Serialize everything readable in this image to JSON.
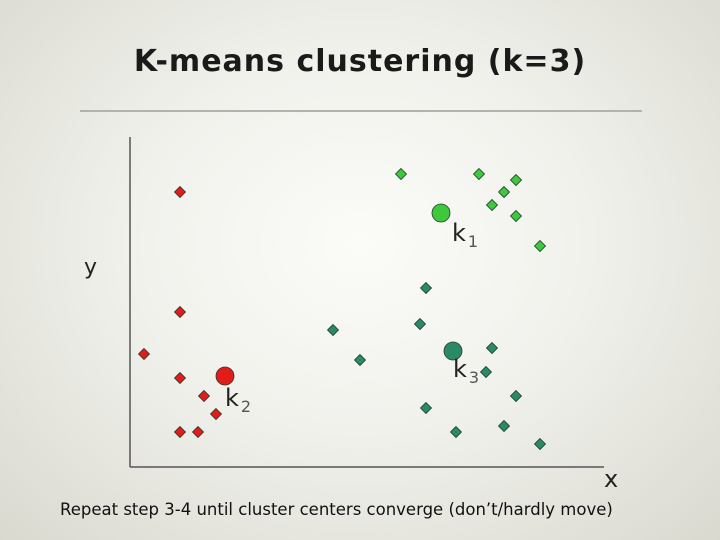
{
  "title": "K-means clustering (k=3)",
  "caption": "Repeat step 3-4 until cluster centers converge (don’t/hardly move)",
  "axes": {
    "x_label": "x",
    "y_label": "y"
  },
  "colors": {
    "cluster_1": "#3ec83e",
    "cluster_2": "#e21b1b",
    "cluster_3": "#2a8a68",
    "axis": "#555555"
  },
  "chart_data": {
    "type": "scatter",
    "xlabel": "x",
    "ylabel": "y",
    "clusters": [
      {
        "id": "k1",
        "center_label": "k",
        "center_sub": "1",
        "color": "#3ec83e",
        "center": [
          441,
          213
        ],
        "points": [
          [
            401,
            174
          ],
          [
            479,
            174
          ],
          [
            516,
            180
          ],
          [
            504,
            192
          ],
          [
            492,
            205
          ],
          [
            516,
            216
          ],
          [
            540,
            246
          ]
        ]
      },
      {
        "id": "k2",
        "center_label": "k",
        "center_sub": "2",
        "color": "#e21b1b",
        "center": [
          225,
          376
        ],
        "points": [
          [
            180,
            192
          ],
          [
            180,
            312
          ],
          [
            144,
            354
          ],
          [
            180,
            378
          ],
          [
            204,
            396
          ],
          [
            216,
            414
          ],
          [
            180,
            432
          ],
          [
            198,
            432
          ]
        ]
      },
      {
        "id": "k3",
        "center_label": "k",
        "center_sub": "3",
        "color": "#2a8a68",
        "center": [
          453,
          351
        ],
        "points": [
          [
            426,
            288
          ],
          [
            420,
            324
          ],
          [
            333,
            330
          ],
          [
            360,
            360
          ],
          [
            492,
            348
          ],
          [
            486,
            372
          ],
          [
            516,
            396
          ],
          [
            426,
            408
          ],
          [
            504,
            426
          ],
          [
            456,
            432
          ],
          [
            540,
            444
          ]
        ]
      }
    ]
  }
}
